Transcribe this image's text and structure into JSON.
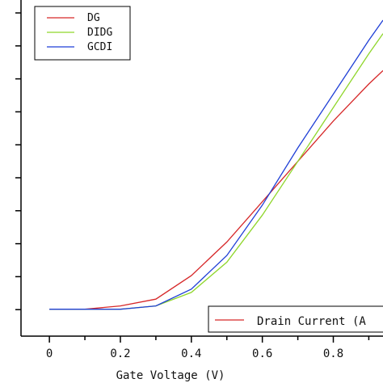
{
  "chart_data": {
    "type": "line",
    "title": "",
    "xlabel": "Gate Voltage (V)",
    "ylabel": "",
    "xlim": [
      -0.08,
      0.94
    ],
    "ylim": [
      0,
      1
    ],
    "x_ticks": [
      0,
      0.2,
      0.4,
      0.6,
      0.8
    ],
    "x_tick_labels": [
      "0",
      "0.2",
      "0.4",
      "0.6",
      "0.8"
    ],
    "legend_position": "top-left",
    "series": [
      {
        "name": "DG",
        "color": "#d62728",
        "x": [
          0,
          0.1,
          0.2,
          0.3,
          0.4,
          0.5,
          0.6,
          0.7,
          0.8,
          0.9,
          0.94
        ],
        "y": [
          0.08,
          0.08,
          0.09,
          0.11,
          0.18,
          0.28,
          0.4,
          0.52,
          0.64,
          0.75,
          0.79
        ]
      },
      {
        "name": "DIDG",
        "color": "#8fd62b",
        "x": [
          0,
          0.1,
          0.2,
          0.3,
          0.4,
          0.5,
          0.6,
          0.7,
          0.8,
          0.9,
          0.94
        ],
        "y": [
          0.08,
          0.08,
          0.08,
          0.09,
          0.13,
          0.22,
          0.36,
          0.52,
          0.68,
          0.84,
          0.9
        ]
      },
      {
        "name": "GCDI",
        "color": "#1f3fd6",
        "x": [
          0,
          0.1,
          0.2,
          0.3,
          0.4,
          0.5,
          0.6,
          0.7,
          0.8,
          0.9,
          0.94
        ],
        "y": [
          0.08,
          0.08,
          0.08,
          0.09,
          0.14,
          0.24,
          0.39,
          0.56,
          0.72,
          0.88,
          0.94
        ]
      }
    ],
    "secondary_legend": {
      "label": "Drain Current (A",
      "color": "#d62728"
    }
  }
}
